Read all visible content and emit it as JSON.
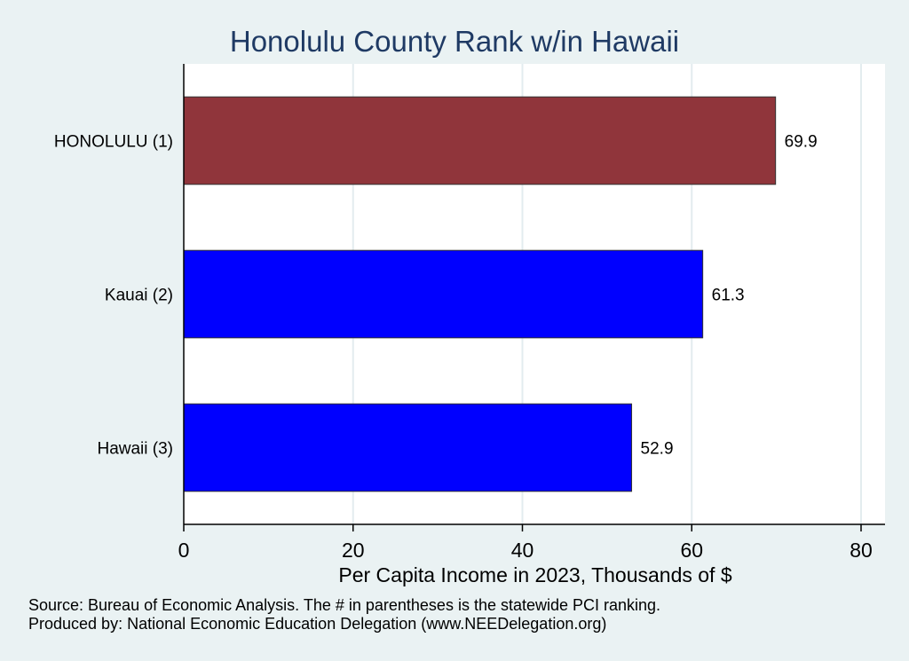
{
  "chart_data": {
    "type": "bar",
    "orientation": "horizontal",
    "title": "Honolulu County Rank w/in Hawaii",
    "categories": [
      "HONOLULU  (1)",
      "Kauai  (2)",
      "Hawaii  (3)"
    ],
    "values": [
      69.9,
      61.3,
      52.9
    ],
    "value_labels": [
      "69.9",
      "61.3",
      "52.9"
    ],
    "bar_colors": [
      "#90353b",
      "#0000ff",
      "#0000ff"
    ],
    "xlabel": "Per Capita Income in 2023, Thousands of $",
    "ylabel": "",
    "xlim": [
      0,
      80
    ],
    "xticks": [
      "0",
      "20",
      "40",
      "60",
      "80"
    ],
    "xtick_values": [
      0,
      20,
      40,
      60,
      80
    ],
    "grid": true,
    "legend": "none"
  },
  "notes": {
    "source": "Source: Bureau of Economic Analysis. The # in parentheses is the statewide PCI ranking.",
    "produced_by": "Produced by: National Economic Education Delegation (www.NEEDelegation.org)"
  },
  "colors": {
    "background": "#eaf2f3",
    "plot_background": "#ffffff",
    "gridline": "#e3ecef",
    "title": "#1f3a64"
  }
}
